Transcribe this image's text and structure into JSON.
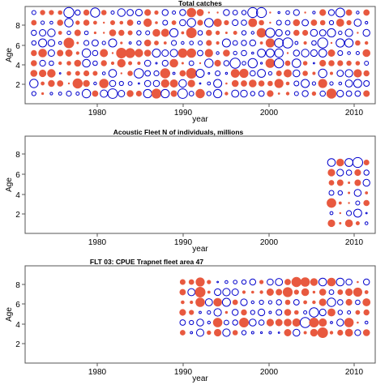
{
  "figure": {
    "background": "#ffffff"
  },
  "colors": {
    "positive": "#e8593f",
    "negative": "#0000cc",
    "frame": "#555555"
  },
  "chart_data": [
    {
      "type": "scatter",
      "title": "Total catches",
      "xlabel": "year",
      "ylabel": "Age",
      "xlim": [
        1972,
        2012
      ],
      "ylim": [
        0,
        9.6
      ],
      "xticks": [
        1980,
        1990,
        2000,
        2010
      ],
      "yticks": [
        2,
        4,
        6,
        8
      ],
      "grid": false,
      "years": [
        1973,
        2011
      ],
      "ages": [
        1,
        9
      ],
      "max_residual": 2.5,
      "residual_pattern": "pooled residual bubble plot: open blue = negative, filled red = positive"
    },
    {
      "type": "scatter",
      "title": "Acoustic Fleet  N of individuals, millions",
      "xlabel": "year",
      "ylabel": "Age",
      "xlim": [
        1972,
        2012
      ],
      "ylim": [
        0,
        9.6
      ],
      "xticks": [
        1980,
        1990,
        2000,
        2010
      ],
      "yticks": [
        2,
        4,
        6,
        8
      ],
      "grid": false,
      "years": [
        2007,
        2011
      ],
      "ages": [
        1,
        7
      ],
      "max_residual": 2.5,
      "residual_pattern": "pooled residual bubble plot: open blue = negative, filled red = positive"
    },
    {
      "type": "scatter",
      "title": "FLT 03: CPUE Trapnet fleet area 47",
      "xlabel": "year",
      "ylabel": "Age",
      "xlim": [
        1972,
        2012
      ],
      "ylim": [
        0,
        9.6
      ],
      "xticks": [
        1980,
        1990,
        2000,
        2010
      ],
      "yticks": [
        2,
        4,
        6,
        8
      ],
      "grid": false,
      "years": [
        1990,
        2011
      ],
      "ages": [
        3,
        8
      ],
      "max_residual": 2.5,
      "residual_pattern": "pooled residual bubble plot: open blue = negative, filled red = positive"
    }
  ]
}
